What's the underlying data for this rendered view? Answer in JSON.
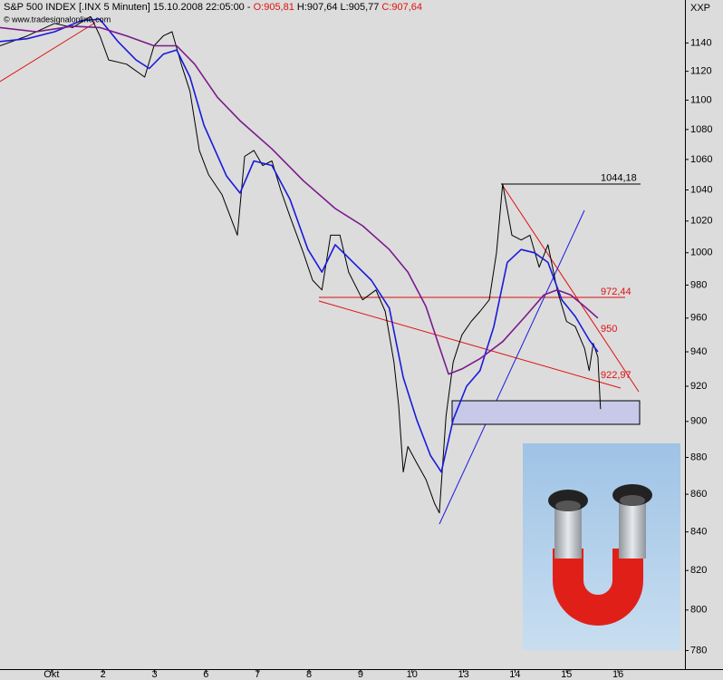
{
  "chart_data": {
    "type": "line",
    "title": "S&P 500 INDEX [.INX  5 Minuten] 15.10.2008 22:05:00 - ",
    "open_label": "O:905,81",
    "high_low_label": "H:907,64 L:905,77",
    "close_label": "C:907,64",
    "source": "© www.tradesignalonline.com",
    "axis_label": "XXP",
    "log": true,
    "grid": false,
    "xlim": [
      -1,
      12.3
    ],
    "xticks": [
      {
        "value": 0,
        "label": "Okt"
      },
      {
        "value": 1,
        "label": "2"
      },
      {
        "value": 2,
        "label": "3"
      },
      {
        "value": 3,
        "label": "6"
      },
      {
        "value": 4,
        "label": "7"
      },
      {
        "value": 5,
        "label": "8"
      },
      {
        "value": 6,
        "label": "9"
      },
      {
        "value": 7,
        "label": "10"
      },
      {
        "value": 8,
        "label": "13"
      },
      {
        "value": 9,
        "label": "14"
      },
      {
        "value": 10,
        "label": "15"
      },
      {
        "value": 11,
        "label": "16"
      }
    ],
    "ylim": [
      771,
      1171
    ],
    "yticks": [
      780,
      800,
      820,
      840,
      860,
      880,
      900,
      920,
      940,
      960,
      980,
      1000,
      1020,
      1040,
      1060,
      1080,
      1100,
      1120,
      1140
    ],
    "series": [
      {
        "color": "#000000",
        "x": [
          -1.0,
          -0.47,
          0.06,
          0.41,
          0.76,
          0.94,
          1.11,
          1.46,
          1.81,
          1.99,
          2.17,
          2.34,
          2.52,
          2.69,
          2.87,
          3.05,
          3.31,
          3.61,
          3.75,
          3.93,
          4.1,
          4.28,
          4.45,
          4.63,
          4.89,
          5.07,
          5.25,
          5.42,
          5.6,
          5.77,
          6.04,
          6.3,
          6.48,
          6.65,
          6.74,
          6.83,
          6.92,
          7.09,
          7.27,
          7.44,
          7.53,
          7.66,
          7.8,
          7.97,
          8.15,
          8.32,
          8.5,
          8.64,
          8.76,
          8.94,
          9.12,
          9.29,
          9.47,
          9.64,
          9.82,
          10.0,
          10.17,
          10.35,
          10.44,
          10.52,
          10.61,
          10.66
        ],
        "values": [
          1138,
          1145,
          1154,
          1151,
          1159,
          1145,
          1128,
          1125,
          1116,
          1138,
          1145,
          1148,
          1125,
          1106,
          1066,
          1050,
          1037,
          1011,
          1062,
          1066,
          1056,
          1059,
          1040,
          1023,
          1000,
          983,
          977,
          1011,
          1011,
          988,
          971,
          977,
          964,
          934,
          909,
          872,
          886,
          877,
          868,
          855,
          850,
          903,
          934,
          950,
          958,
          964,
          971,
          1000,
          1044,
          1011,
          1008,
          1011,
          991,
          1005,
          977,
          958,
          955,
          942,
          929,
          945,
          937,
          907
        ]
      },
      {
        "color": "#1a1adc",
        "x": [
          -1.0,
          -0.47,
          0.06,
          0.58,
          0.94,
          1.29,
          1.64,
          1.9,
          2.17,
          2.43,
          2.69,
          2.96,
          3.4,
          3.66,
          3.93,
          4.28,
          4.63,
          4.98,
          5.25,
          5.51,
          5.86,
          6.21,
          6.56,
          6.83,
          7.09,
          7.36,
          7.57,
          7.8,
          8.06,
          8.32,
          8.59,
          8.85,
          9.12,
          9.38,
          9.64,
          9.91,
          10.17,
          10.44,
          10.61
        ],
        "values": [
          1141,
          1143,
          1148,
          1156,
          1157,
          1141,
          1128,
          1122,
          1132,
          1135,
          1116,
          1083,
          1049,
          1038,
          1059,
          1056,
          1034,
          1002,
          988,
          1005,
          994,
          983,
          966,
          925,
          901,
          881,
          872,
          901,
          920,
          929,
          955,
          994,
          1002,
          1000,
          994,
          971,
          961,
          947,
          940
        ]
      },
      {
        "color": "#7a1a8c",
        "x": [
          -1.0,
          -0.3,
          0.41,
          0.94,
          1.46,
          1.99,
          2.43,
          2.78,
          3.22,
          3.66,
          4.28,
          4.89,
          5.51,
          6.04,
          6.56,
          6.92,
          7.27,
          7.53,
          7.71,
          7.97,
          8.32,
          8.76,
          9.2,
          9.56,
          9.82,
          10.08,
          10.35,
          10.61
        ],
        "values": [
          1151,
          1148,
          1152,
          1151,
          1145,
          1138,
          1138,
          1125,
          1102,
          1086,
          1067,
          1046,
          1028,
          1017,
          1002,
          988,
          967,
          943,
          927,
          930,
          936,
          946,
          961,
          974,
          977,
          974,
          967,
          960
        ]
      }
    ],
    "annotations": [
      {
        "value": 1044.18,
        "label": "1044,18",
        "color": "#000000"
      },
      {
        "value": 972.44,
        "label": "972,44",
        "color": "#e01010"
      },
      {
        "value": 950,
        "label": "950",
        "color": "#e01010"
      },
      {
        "value": 922.97,
        "label": "922,97",
        "color": "#e01010"
      }
    ]
  }
}
